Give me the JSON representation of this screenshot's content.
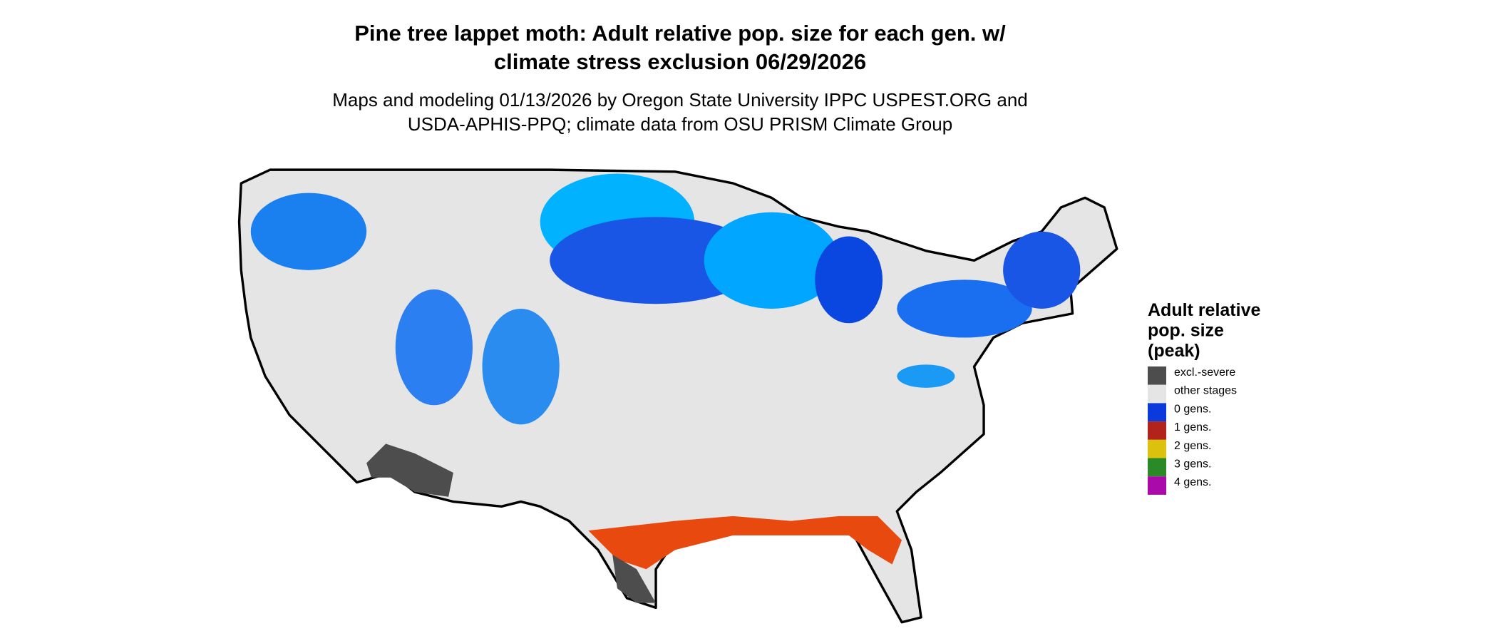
{
  "map": {
    "title": [
      "Pine tree lappet moth: Adult relative pop. size for each gen. w/",
      "climate stress exclusion 06/29/2026"
    ],
    "subtitle": [
      "Maps and modeling 01/13/2026 by Oregon State University IPPC USPEST.ORG and",
      "USDA-APHIS-PPQ; climate data from OSU PRISM Climate Group"
    ],
    "legend": {
      "title": [
        "Adult relative",
        "pop. size",
        "(peak)"
      ],
      "items": [
        {
          "label": "excl.-severe",
          "color": "#4d4d4d"
        },
        {
          "label": "other stages",
          "color": "#e5e5e5"
        },
        {
          "label": "0 gens.",
          "color": "#0a3adb"
        },
        {
          "label": "1 gens.",
          "color": "#b2231b"
        },
        {
          "label": "2 gens.",
          "color": "#dcc20e"
        },
        {
          "label": "3 gens.",
          "color": "#2a8a28"
        },
        {
          "label": "4 gens.",
          "color": "#a90aa9"
        }
      ]
    }
  }
}
